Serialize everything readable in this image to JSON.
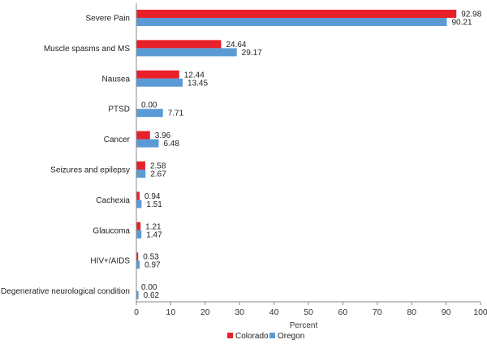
{
  "chart_data": {
    "type": "bar",
    "orientation": "horizontal",
    "categories": [
      "Severe Pain",
      "Muscle spasms and MS",
      "Nausea",
      "PTSD",
      "Cancer",
      "Seizures and epilepsy",
      "Cachexia",
      "Glaucoma",
      "HIV+/AIDS",
      "Degenerative neurological condition"
    ],
    "series": [
      {
        "name": "Colorado",
        "color": "#e8202a",
        "values": [
          92.98,
          24.64,
          12.44,
          0.0,
          3.96,
          2.58,
          0.94,
          1.21,
          0.53,
          0.0
        ],
        "labels": [
          "92.98",
          "24.64",
          "12.44",
          "0.00",
          "3.96",
          "2.58",
          "0.94",
          "1.21",
          "0.53",
          "0.00"
        ]
      },
      {
        "name": "Oregon",
        "color": "#5b9bd5",
        "values": [
          90.21,
          29.17,
          13.45,
          7.71,
          6.48,
          2.67,
          1.51,
          1.47,
          0.97,
          0.62
        ],
        "labels": [
          "90.21",
          "29.17",
          "13.45",
          "7.71",
          "6.48",
          "2.67",
          "1.51",
          "1.47",
          "0.97",
          "0.62"
        ]
      }
    ],
    "xlabel": "Percent",
    "xlim": [
      0,
      100
    ],
    "xticks": [
      "0",
      "10",
      "20",
      "30",
      "40",
      "50",
      "60",
      "70",
      "80",
      "90",
      "100"
    ],
    "grid": false,
    "legend_position": "bottom-center"
  }
}
